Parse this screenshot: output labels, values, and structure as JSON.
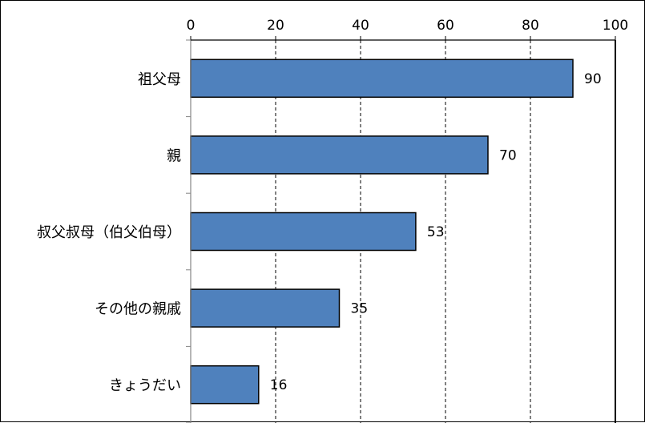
{
  "chart_data": {
    "type": "bar",
    "orientation": "horizontal",
    "categories": [
      "祖父母",
      "親",
      "叔父叔母（伯父伯母）",
      "その他の親戚",
      "きょうだい"
    ],
    "values": [
      90,
      70,
      53,
      35,
      16
    ],
    "xlim": [
      0,
      100
    ],
    "xticks": [
      0,
      20,
      40,
      60,
      80,
      100
    ],
    "grid": "vertical dashed",
    "bar_color": "#4f81bd",
    "data_labels": true
  }
}
